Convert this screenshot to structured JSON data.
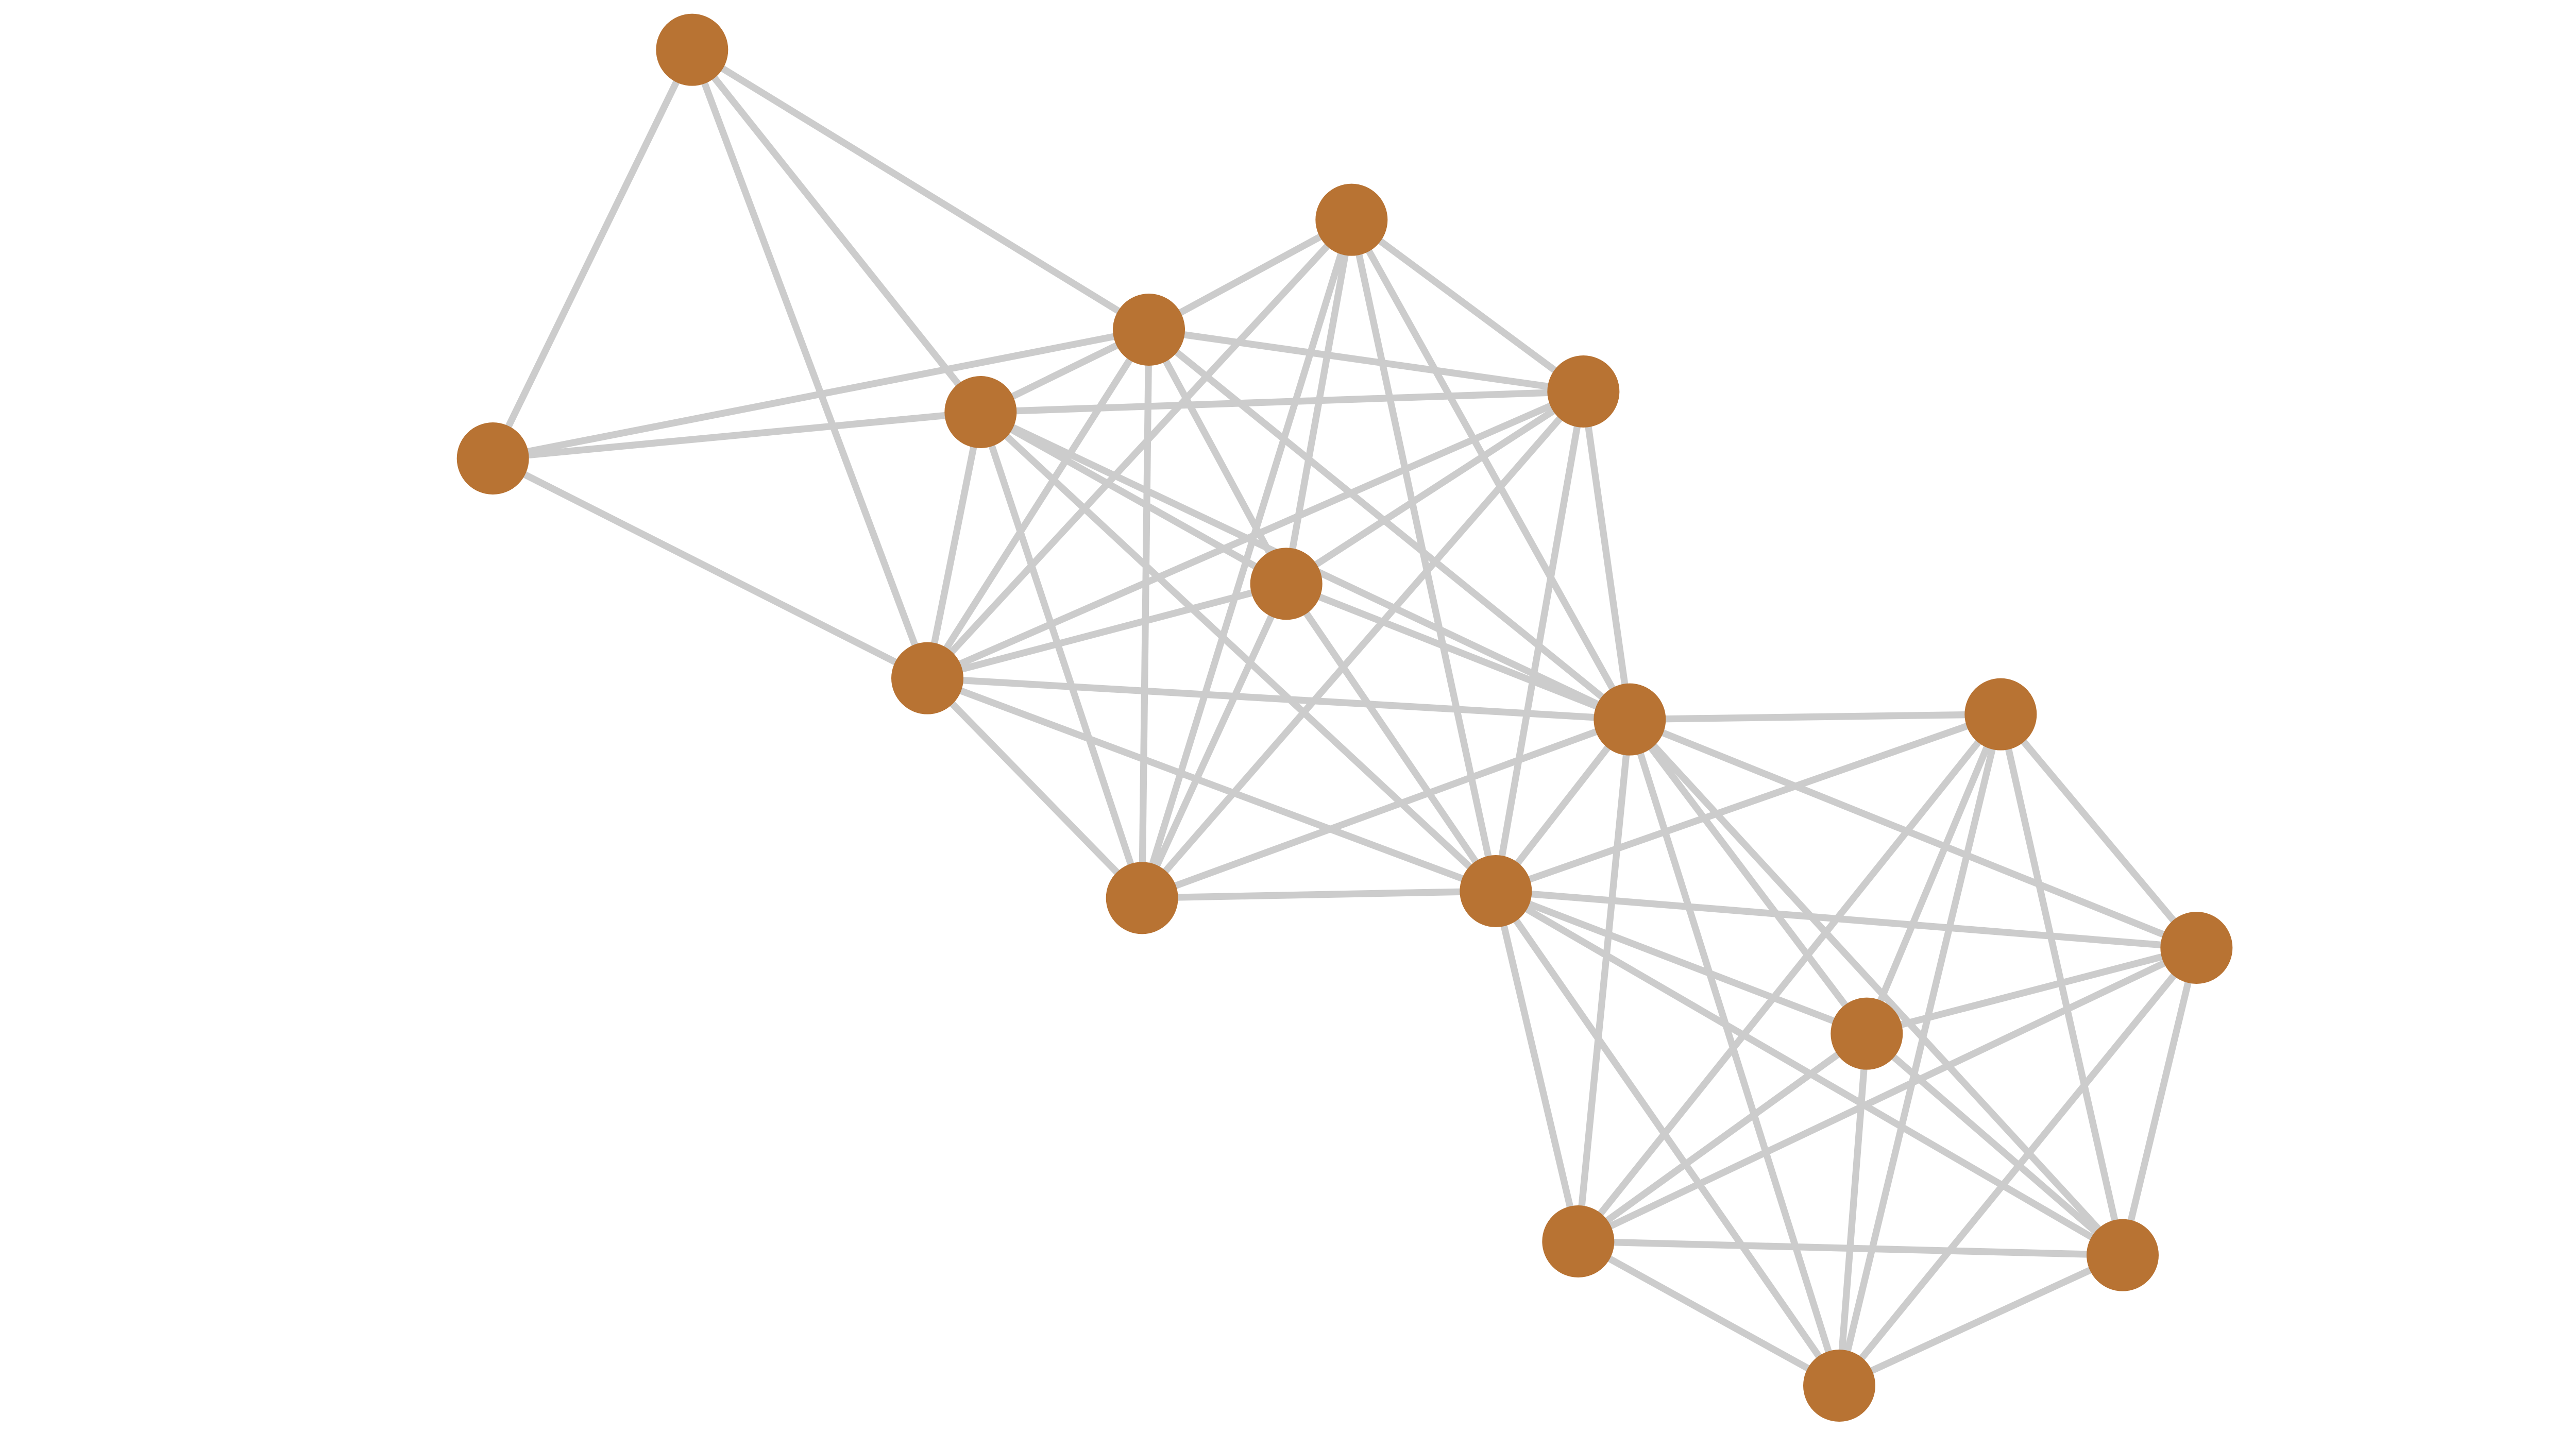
{
  "colors": {
    "node": "#b87333",
    "edge": "#cccccc",
    "background": "#ffffff"
  },
  "graph": {
    "node_count": 17,
    "edges": [
      [
        0,
        1
      ],
      [
        0,
        2
      ],
      [
        0,
        3
      ],
      [
        0,
        7
      ],
      [
        1,
        2
      ],
      [
        1,
        3
      ],
      [
        1,
        7
      ],
      [
        2,
        3
      ],
      [
        2,
        4
      ],
      [
        2,
        5
      ],
      [
        2,
        6
      ],
      [
        2,
        7
      ],
      [
        2,
        9
      ],
      [
        2,
        8
      ],
      [
        3,
        5
      ],
      [
        3,
        6
      ],
      [
        3,
        7
      ],
      [
        3,
        9
      ],
      [
        3,
        8
      ],
      [
        3,
        10
      ],
      [
        4,
        5
      ],
      [
        4,
        6
      ],
      [
        4,
        7
      ],
      [
        4,
        9
      ],
      [
        4,
        8
      ],
      [
        4,
        10
      ],
      [
        5,
        6
      ],
      [
        5,
        7
      ],
      [
        5,
        9
      ],
      [
        5,
        8
      ],
      [
        5,
        10
      ],
      [
        6,
        7
      ],
      [
        6,
        9
      ],
      [
        6,
        8
      ],
      [
        6,
        10
      ],
      [
        7,
        8
      ],
      [
        7,
        9
      ],
      [
        7,
        10
      ],
      [
        9,
        10
      ],
      [
        9,
        8
      ],
      [
        8,
        10
      ],
      [
        8,
        11
      ],
      [
        8,
        12
      ],
      [
        8,
        13
      ],
      [
        8,
        14
      ],
      [
        8,
        15
      ],
      [
        8,
        16
      ],
      [
        10,
        11
      ],
      [
        10,
        12
      ],
      [
        10,
        13
      ],
      [
        10,
        14
      ],
      [
        10,
        15
      ],
      [
        10,
        16
      ],
      [
        11,
        12
      ],
      [
        11,
        15
      ],
      [
        11,
        14
      ],
      [
        11,
        16
      ],
      [
        11,
        13
      ],
      [
        12,
        13
      ],
      [
        12,
        14
      ],
      [
        12,
        15
      ],
      [
        12,
        16
      ],
      [
        13,
        14
      ],
      [
        13,
        15
      ],
      [
        13,
        16
      ],
      [
        14,
        15
      ],
      [
        14,
        16
      ],
      [
        15,
        16
      ]
    ]
  }
}
